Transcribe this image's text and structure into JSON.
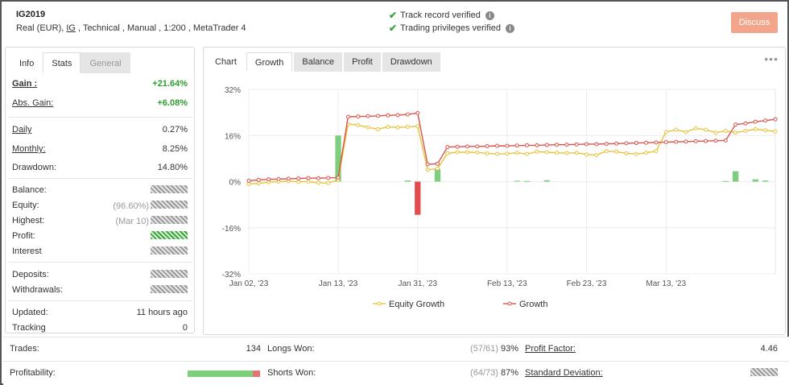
{
  "header": {
    "account_name": "IG2019",
    "sub_prefix": "Real (EUR), ",
    "broker": "IG",
    "sub_suffix": " , Technical , Manual , 1:200 , MetaTrader 4",
    "verify_track": "Track record verified",
    "verify_trading": "Trading privileges verified",
    "discuss_label": "Discuss"
  },
  "left_tabs": [
    "Info",
    "Stats",
    "General"
  ],
  "stats": {
    "gain_label": "Gain :",
    "gain_value": "+21.64%",
    "abs_gain_label": "Abs. Gain:",
    "abs_gain_value": "+6.08%",
    "daily_label": "Daily",
    "daily_value": "0.27%",
    "monthly_label": "Monthly:",
    "monthly_value": "8.25%",
    "drawdown_label": "Drawdown:",
    "drawdown_value": "14.80%",
    "balance_label": "Balance:",
    "equity_label": "Equity:",
    "equity_prefix": "(96.60%)",
    "highest_label": "Highest:",
    "highest_prefix": "(Mar 10)",
    "profit_label": "Profit:",
    "interest_label": "Interest",
    "deposits_label": "Deposits:",
    "withdrawals_label": "Withdrawals:",
    "updated_label": "Updated:",
    "updated_value": "11 hours ago",
    "tracking_label": "Tracking",
    "tracking_value": "0"
  },
  "chart_tabs": [
    "Chart",
    "Growth",
    "Balance",
    "Profit",
    "Drawdown"
  ],
  "more_icon": "ellipsis-icon",
  "colors": {
    "growth": "#d9534f",
    "equity": "#e8c33a",
    "bar_pos": "#7dcf7d",
    "bar_neg": "#e24c4c",
    "accent_button": "#f2a58a"
  },
  "chart_data": {
    "type": "line",
    "x": [
      "Jan 02, '23",
      "Jan 03",
      "Jan 04",
      "Jan 05",
      "Jan 06",
      "Jan 09",
      "Jan 10",
      "Jan 11",
      "Jan 12",
      "Jan 13",
      "Jan 16",
      "Jan 17",
      "Jan 18",
      "Jan 19",
      "Jan 20",
      "Jan 23",
      "Jan 24",
      "Jan 25",
      "Jan 26",
      "Jan 27",
      "Jan 30",
      "Jan 31",
      "Feb 01",
      "Feb 02",
      "Feb 03",
      "Feb 06",
      "Feb 07",
      "Feb 08",
      "Feb 09",
      "Feb 10",
      "Feb 13",
      "Feb 14",
      "Feb 15",
      "Feb 16",
      "Feb 17",
      "Feb 20",
      "Feb 21",
      "Feb 22",
      "Feb 23",
      "Feb 24",
      "Feb 27",
      "Feb 28",
      "Mar 01",
      "Mar 02",
      "Mar 03",
      "Mar 06",
      "Mar 07",
      "Mar 08",
      "Mar 09",
      "Mar 10",
      "Mar 13",
      "Mar 14",
      "Mar 15",
      "Mar 16"
    ],
    "x_tick_labels": [
      "Jan 02, '23",
      "Jan 13, '23",
      "Jan 31, '23",
      "Feb 13, '23",
      "Feb 23, '23",
      "Mar 13, '23"
    ],
    "x_tick_index": [
      0,
      9,
      17,
      26,
      34,
      42
    ],
    "series": [
      {
        "name": "Growth",
        "values": [
          0.3,
          0.6,
          0.8,
          0.9,
          1.0,
          1.1,
          1.2,
          1.2,
          1.3,
          1.4,
          22.5,
          22.6,
          22.7,
          22.8,
          23.0,
          23.1,
          23.3,
          23.8,
          6.0,
          6.2,
          12.0,
          12.1,
          12.2,
          12.2,
          12.3,
          12.4,
          12.4,
          12.5,
          12.6,
          12.6,
          12.7,
          12.8,
          12.8,
          12.9,
          13.0,
          13.0,
          13.1,
          13.2,
          13.3,
          13.4,
          13.5,
          13.6,
          13.7,
          13.8,
          13.9,
          14.0,
          14.1,
          14.2,
          14.3,
          19.8,
          20.2,
          20.8,
          21.2,
          21.64
        ]
      },
      {
        "name": "Equity Growth",
        "values": [
          -0.8,
          -0.6,
          -0.2,
          0.0,
          0.1,
          -0.1,
          0.0,
          -0.4,
          -0.5,
          0.6,
          20.0,
          19.6,
          18.8,
          18.2,
          19.0,
          18.8,
          19.0,
          19.2,
          4.1,
          4.5,
          9.8,
          10.2,
          10.2,
          10.1,
          9.8,
          9.6,
          9.7,
          10.0,
          9.6,
          10.4,
          10.2,
          10.0,
          9.9,
          10.0,
          9.4,
          9.2,
          10.6,
          10.4,
          9.8,
          9.6,
          10.0,
          10.6,
          17.2,
          18.0,
          17.2,
          18.5,
          18.0,
          17.0,
          17.6,
          17.0,
          17.6,
          18.2,
          17.8,
          17.4
        ]
      }
    ],
    "bars": [
      0,
      0,
      0,
      0,
      0,
      0,
      0,
      0,
      0,
      16.0,
      0,
      0,
      0,
      0,
      0,
      0,
      0.4,
      -11.5,
      0,
      4.4,
      0,
      0,
      0,
      0,
      0,
      0,
      0,
      0.3,
      0.2,
      0,
      0.5,
      0,
      0,
      0,
      0,
      0,
      0,
      0,
      0,
      0,
      0,
      0,
      0,
      0,
      0,
      0,
      0,
      0,
      0.2,
      3.6,
      0,
      0.8,
      0.4,
      0
    ],
    "y_tick_labels": [
      "32%",
      "16%",
      "0%",
      "-16%",
      "-32%"
    ],
    "ylim": [
      -32,
      32
    ],
    "legend": [
      "Equity Growth",
      "Growth"
    ],
    "legend_position": "bottom"
  },
  "bottom": {
    "trades_label": "Trades:",
    "trades_value": "134",
    "longs_label": "Longs Won:",
    "longs_ratio": "(57/61)",
    "longs_pct": "93%",
    "profit_factor_label": "Profit Factor:",
    "profit_factor_value": "4.46",
    "profitability_label": "Profitability:",
    "profitability_win_fraction": 0.9,
    "shorts_label": "Shorts Won:",
    "shorts_ratio": "(64/73)",
    "shorts_pct": "87%",
    "std_dev_label": "Standard Deviation:"
  }
}
